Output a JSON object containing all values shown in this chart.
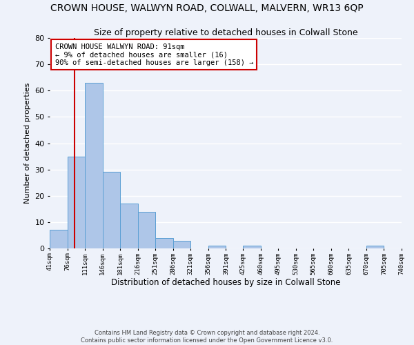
{
  "title": "CROWN HOUSE, WALWYN ROAD, COLWALL, MALVERN, WR13 6QP",
  "subtitle": "Size of property relative to detached houses in Colwall Stone",
  "xlabel": "Distribution of detached houses by size in Colwall Stone",
  "ylabel": "Number of detached properties",
  "bar_edges": [
    41,
    76,
    111,
    146,
    181,
    216,
    251,
    286,
    321,
    356,
    391,
    425,
    460,
    495,
    530,
    565,
    600,
    635,
    670,
    705,
    740
  ],
  "bar_heights": [
    7,
    35,
    63,
    29,
    17,
    14,
    4,
    3,
    0,
    1,
    0,
    1,
    0,
    0,
    0,
    0,
    0,
    0,
    1,
    0
  ],
  "bar_color": "#aec6e8",
  "bar_edge_color": "#5a9fd4",
  "vline_x": 91,
  "vline_color": "#cc0000",
  "ylim": [
    0,
    80
  ],
  "yticks": [
    0,
    10,
    20,
    30,
    40,
    50,
    60,
    70,
    80
  ],
  "tick_labels": [
    "41sqm",
    "76sqm",
    "111sqm",
    "146sqm",
    "181sqm",
    "216sqm",
    "251sqm",
    "286sqm",
    "321sqm",
    "356sqm",
    "391sqm",
    "425sqm",
    "460sqm",
    "495sqm",
    "530sqm",
    "565sqm",
    "600sqm",
    "635sqm",
    "670sqm",
    "705sqm",
    "740sqm"
  ],
  "annotation_title": "CROWN HOUSE WALWYN ROAD: 91sqm",
  "annotation_line1": "← 9% of detached houses are smaller (16)",
  "annotation_line2": "90% of semi-detached houses are larger (158) →",
  "annotation_box_color": "#ffffff",
  "annotation_box_edge_color": "#cc0000",
  "footer1": "Contains HM Land Registry data © Crown copyright and database right 2024.",
  "footer2": "Contains public sector information licensed under the Open Government Licence v3.0.",
  "background_color": "#eef2fa",
  "grid_color": "#ffffff",
  "title_fontsize": 10,
  "subtitle_fontsize": 9,
  "annotation_fontsize": 7.5
}
